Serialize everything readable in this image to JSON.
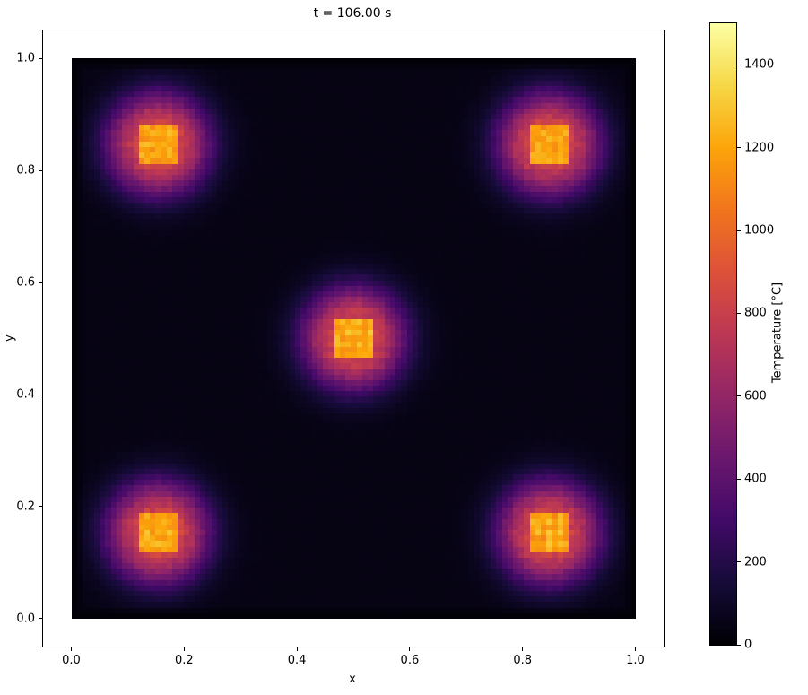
{
  "chart_data": {
    "type": "heatmap",
    "title": "t = 106.00 s",
    "xlabel": "x",
    "ylabel": "y",
    "colorbar_label": "Temperature [°C]",
    "xlim": [
      -0.05,
      1.05
    ],
    "ylim": [
      -0.05,
      1.05
    ],
    "extent": [
      0,
      1,
      0,
      1
    ],
    "x_ticks": [
      0.0,
      0.2,
      0.4,
      0.6,
      0.8,
      1.0
    ],
    "x_tick_labels": [
      "0.0",
      "0.2",
      "0.4",
      "0.6",
      "0.8",
      "1.0"
    ],
    "y_ticks": [
      0.0,
      0.2,
      0.4,
      0.6,
      0.8,
      1.0
    ],
    "y_tick_labels": [
      "0.0",
      "0.2",
      "0.4",
      "0.6",
      "0.8",
      "1.0"
    ],
    "colorbar_ticks": [
      0,
      200,
      400,
      600,
      800,
      1000,
      1200,
      1400
    ],
    "colorbar_tick_labels": [
      "0",
      "200",
      "400",
      "600",
      "800",
      "1000",
      "1200",
      "1400"
    ],
    "vmin": 0,
    "vmax": 1500,
    "colormap": "inferno",
    "colormap_anchors": [
      [
        0.0,
        "#000004"
      ],
      [
        0.1,
        "#160b39"
      ],
      [
        0.2,
        "#420a68"
      ],
      [
        0.3,
        "#6a176e"
      ],
      [
        0.4,
        "#932667"
      ],
      [
        0.5,
        "#bc3754"
      ],
      [
        0.6,
        "#dd513a"
      ],
      [
        0.7,
        "#f1751d"
      ],
      [
        0.8,
        "#fca50a"
      ],
      [
        0.9,
        "#f6d746"
      ],
      [
        1.0,
        "#fcffa4"
      ]
    ],
    "grid_n": 101,
    "field": {
      "base_temp": 45,
      "hotspots": [
        {
          "x": 0.15,
          "y": 0.85
        },
        {
          "x": 0.85,
          "y": 0.85
        },
        {
          "x": 0.5,
          "y": 0.5
        },
        {
          "x": 0.15,
          "y": 0.15
        },
        {
          "x": 0.85,
          "y": 0.15
        }
      ],
      "core_half_width": 0.032,
      "core_temp": 1200,
      "glow_amplitude": 800,
      "glow_sigma": 0.045,
      "edge_cool_width": 0.02
    }
  }
}
